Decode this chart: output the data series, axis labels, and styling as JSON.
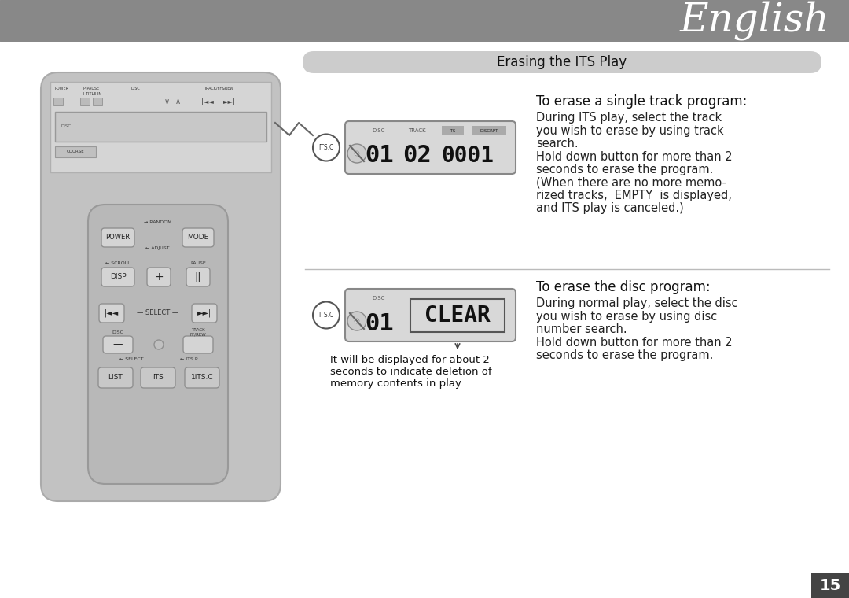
{
  "page_bg": "#ffffff",
  "header_bg": "#888888",
  "header_text": "English",
  "header_text_color": "#ffffff",
  "section_header_text": "Erasing the ITS Play",
  "section_header_bg": "#cccccc",
  "section_header_text_color": "#111111",
  "page_number": "15",
  "page_number_bg": "#444444",
  "page_number_color": "#ffffff",
  "display1_labels": [
    "DISC",
    "TRACK",
    "ITS",
    "DISCRPT"
  ],
  "display2_labels": [
    "DISC"
  ],
  "title1": "To erase a single track program:",
  "body1_lines": [
    "During ITS play, select the track",
    "you wish to erase by using track",
    "search.",
    "Hold down button for more than 2",
    "seconds to erase the program.",
    "(When there are no more memo-",
    "rized tracks,  EMPTY  is displayed,",
    "and ITS play is canceled.)"
  ],
  "title2": "To erase the disc program:",
  "body2_lines": [
    "During normal play, select the disc",
    "you wish to erase by using disc",
    "number search.",
    "Hold down button for more than 2",
    "seconds to erase the program."
  ],
  "caption_lines": [
    "It will be displayed for about 2",
    "seconds to indicate deletion of",
    "memory contents in play."
  ],
  "its_c_label": "ITS.C"
}
